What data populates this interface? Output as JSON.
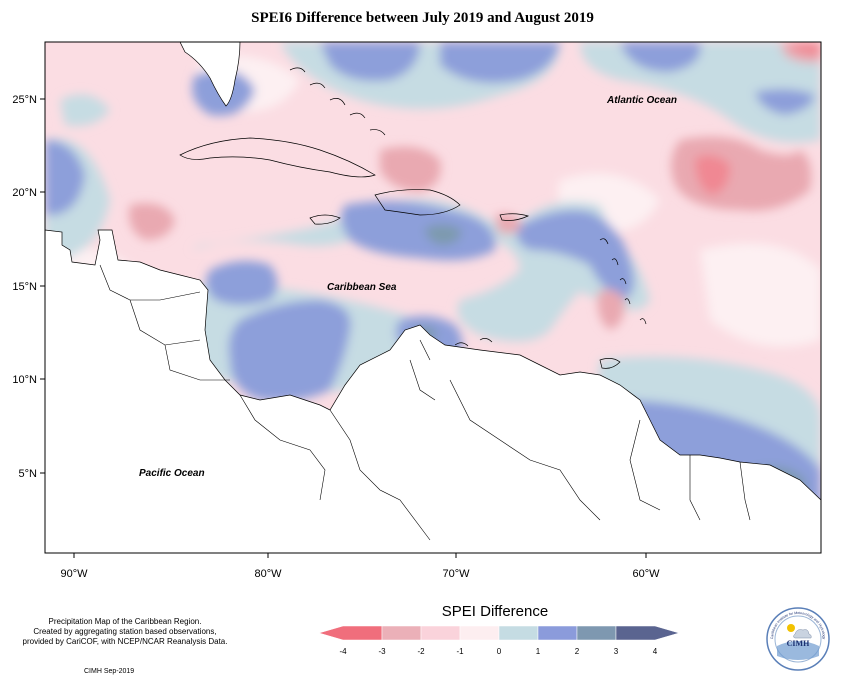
{
  "title": "SPEI6 Difference between July 2019 and August 2019",
  "map": {
    "lat_labels": [
      "25°N",
      "20°N",
      "15°N",
      "10°N",
      "5°N"
    ],
    "lon_labels": [
      "90°W",
      "80°W",
      "70°W",
      "60°W"
    ],
    "ocean_labels": {
      "atlantic": "Atlantic Ocean",
      "caribbean": "Caribbean Sea",
      "pacific": "Pacific Ocean"
    },
    "colors": {
      "light_pink": "#fbdde3",
      "pink": "#e9a9b1",
      "red": "#f08893",
      "very_light": "#fdf0f2",
      "light_blue": "#c6dce3",
      "blue": "#8d9fda",
      "steel": "#7d9aae"
    }
  },
  "footnote": {
    "lines": [
      "Precipitation Map of the Caribbean Region.",
      "Created by aggregating station based observations,",
      "provided by CariCOF, with NCEP/NCAR Reanalysis Data."
    ],
    "credit": "CIMH Sep-2019"
  },
  "legend": {
    "title": "SPEI Difference",
    "ticks": [
      "-4",
      "-3",
      "-2",
      "-1",
      "0",
      "1",
      "2",
      "3",
      "4"
    ],
    "colors": [
      "#f06e7c",
      "#ebb0b8",
      "#fad3db",
      "#fdeef0",
      "#c5dce3",
      "#8b9bdb",
      "#7e98b0",
      "#5a6490"
    ]
  },
  "logo": {
    "text": "CIMH",
    "ring_text": "Caribbean Institute for Meteorology and Hydrology"
  }
}
